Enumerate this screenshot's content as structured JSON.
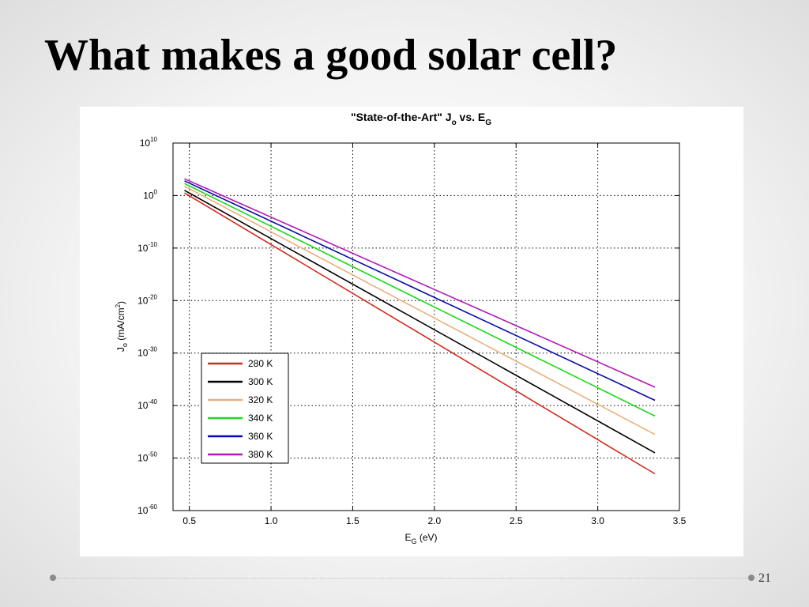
{
  "slide": {
    "title": "What makes a good solar cell?",
    "page_number": "21"
  },
  "chart_data": {
    "type": "line",
    "title": "\"State-of-the-Art\" J o vs. E G",
    "title_parts": [
      "\"State-of-the-Art\" J",
      "o",
      " vs. E",
      "G"
    ],
    "xlabel_parts": [
      "E",
      "G",
      " (eV)"
    ],
    "ylabel_parts": [
      "J",
      "o",
      " (mA/cm",
      "2",
      ")"
    ],
    "x_scale": "linear",
    "y_scale": "log",
    "xlim": [
      0.4,
      3.5
    ],
    "ylim_exponent": [
      -60,
      10
    ],
    "x_ticks": [
      "0.5",
      "1.0",
      "1.5",
      "2.0",
      "2.5",
      "3.0",
      "3.5"
    ],
    "y_ticks": [
      {
        "base": "10",
        "exp": "10"
      },
      {
        "base": "10",
        "exp": "0"
      },
      {
        "base": "10",
        "exp": "-10"
      },
      {
        "base": "10",
        "exp": "-20"
      },
      {
        "base": "10",
        "exp": "-30"
      },
      {
        "base": "10",
        "exp": "-40"
      },
      {
        "base": "10",
        "exp": "-50"
      },
      {
        "base": "10",
        "exp": "-60"
      }
    ],
    "grid": true,
    "legend_position": "lower-left",
    "series": [
      {
        "name": "280 K",
        "color": "#d42a1e",
        "x": [
          0.47,
          3.35
        ],
        "log10_y": [
          0.5,
          -53.0
        ]
      },
      {
        "name": "300 K",
        "color": "#000000",
        "x": [
          0.47,
          3.35
        ],
        "log10_y": [
          1.0,
          -49.0
        ]
      },
      {
        "name": "320 K",
        "color": "#e8b07c",
        "x": [
          0.47,
          3.35
        ],
        "log10_y": [
          1.8,
          -45.5
        ]
      },
      {
        "name": "340 K",
        "color": "#1fd81f",
        "x": [
          0.47,
          3.35
        ],
        "log10_y": [
          2.3,
          -42.0
        ]
      },
      {
        "name": "360 K",
        "color": "#0a0aa8",
        "x": [
          0.47,
          3.35
        ],
        "log10_y": [
          2.8,
          -39.0
        ]
      },
      {
        "name": "380 K",
        "color": "#b01ab8",
        "x": [
          0.47,
          3.35
        ],
        "log10_y": [
          3.2,
          -36.5
        ]
      }
    ]
  }
}
